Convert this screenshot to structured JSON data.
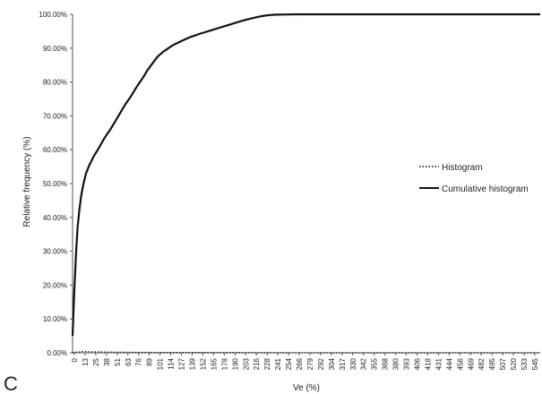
{
  "panel_label": "C",
  "chart_data": {
    "type": "line",
    "xlabel": "Ve (%)",
    "ylabel": "Relative frequency (%)",
    "x_tick_labels": [
      "0",
      "13",
      "25",
      "38",
      "51",
      "63",
      "76",
      "89",
      "101",
      "114",
      "127",
      "139",
      "152",
      "165",
      "178",
      "190",
      "203",
      "216",
      "228",
      "241",
      "254",
      "266",
      "279",
      "292",
      "304",
      "317",
      "330",
      "342",
      "355",
      "368",
      "380",
      "393",
      "406",
      "418",
      "431",
      "444",
      "456",
      "469",
      "482",
      "495",
      "507",
      "520",
      "533",
      "545"
    ],
    "y_tick_labels": [
      "0.00%",
      "10.00%",
      "20.00%",
      "30.00%",
      "40.00%",
      "50.00%",
      "60.00%",
      "70.00%",
      "80.00%",
      "90.00%",
      "100.00%"
    ],
    "xlim": [
      0,
      556
    ],
    "ylim": [
      0,
      100
    ],
    "grid": false,
    "legend_position": "right",
    "series": [
      {
        "name": "Histogram",
        "style": "dotted",
        "color": "#111111",
        "x": [
          0,
          13,
          25,
          51,
          101,
          152,
          203,
          254,
          304,
          355,
          406,
          456,
          507,
          556
        ],
        "y": [
          0.1,
          0.4,
          0.3,
          0.2,
          0.1,
          0.1,
          0.05,
          0.03,
          0.0,
          0.0,
          0.0,
          0.0,
          0.0,
          0.0
        ]
      },
      {
        "name": "Cumulative histogram",
        "style": "solid",
        "color": "#111111",
        "x": [
          0,
          2,
          4,
          6,
          8,
          10,
          13,
          16,
          20,
          25,
          30,
          38,
          45,
          51,
          57,
          63,
          70,
          76,
          83,
          89,
          95,
          101,
          108,
          114,
          120,
          127,
          133,
          139,
          146,
          152,
          165,
          178,
          190,
          203,
          216,
          222,
          228,
          235,
          241,
          254,
          266,
          279,
          292,
          304,
          317,
          330,
          406,
          556
        ],
        "y": [
          5,
          18,
          29,
          37,
          42,
          46,
          50,
          53,
          55.5,
          58,
          60,
          63.5,
          66,
          68.5,
          71,
          73.5,
          76,
          78.5,
          81,
          83.5,
          85.5,
          87.5,
          89,
          90,
          91,
          91.8,
          92.5,
          93.2,
          93.8,
          94.3,
          95.3,
          96.3,
          97.2,
          98.2,
          99.0,
          99.3,
          99.6,
          99.8,
          99.9,
          99.95,
          100,
          100,
          100,
          100,
          100,
          100,
          100,
          100
        ]
      }
    ]
  }
}
